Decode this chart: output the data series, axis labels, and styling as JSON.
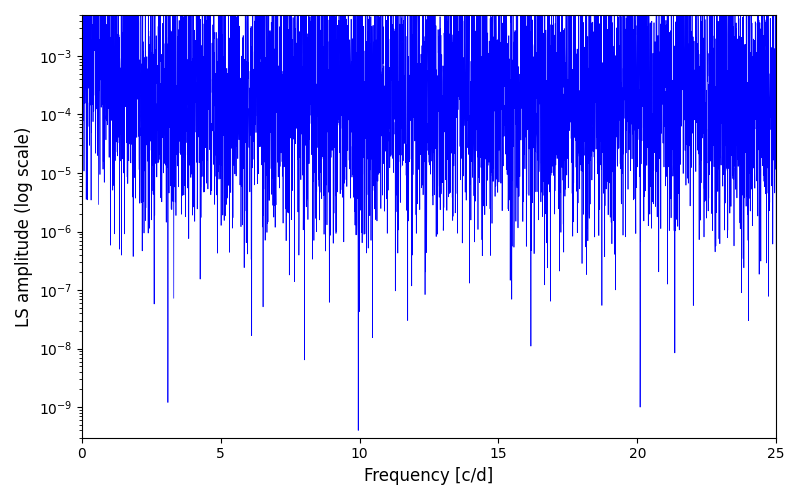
{
  "title": "",
  "xlabel": "Frequency [c/d]",
  "ylabel": "LS amplitude (log scale)",
  "xmin": 0,
  "xmax": 25,
  "ymin": 3e-10,
  "ymax": 0.005,
  "line_color": "#0000ff",
  "linewidth": 0.5,
  "figwidth": 8.0,
  "figheight": 5.0,
  "dpi": 100,
  "seed": 12345,
  "n_points": 5000,
  "peak_freq": 13.9,
  "peak_amplitude": 0.0035,
  "low_freq_cutoff": 2.5,
  "low_freq_peak": 0.003,
  "mid_envelope": 0.0002,
  "noise_std": 1.2
}
